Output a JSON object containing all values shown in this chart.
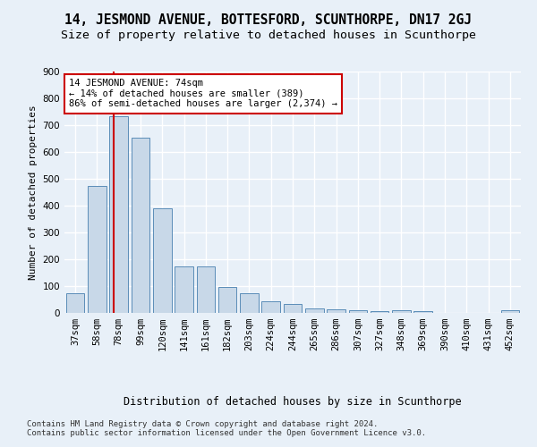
{
  "title": "14, JESMOND AVENUE, BOTTESFORD, SCUNTHORPE, DN17 2GJ",
  "subtitle": "Size of property relative to detached houses in Scunthorpe",
  "xlabel": "Distribution of detached houses by size in Scunthorpe",
  "ylabel": "Number of detached properties",
  "categories": [
    "37sqm",
    "58sqm",
    "78sqm",
    "99sqm",
    "120sqm",
    "141sqm",
    "161sqm",
    "182sqm",
    "203sqm",
    "224sqm",
    "244sqm",
    "265sqm",
    "286sqm",
    "307sqm",
    "327sqm",
    "348sqm",
    "369sqm",
    "390sqm",
    "410sqm",
    "431sqm",
    "452sqm"
  ],
  "values": [
    75,
    475,
    735,
    655,
    390,
    172,
    172,
    98,
    75,
    44,
    33,
    16,
    12,
    10,
    8,
    9,
    8,
    0,
    0,
    0,
    10
  ],
  "bar_color": "#c8d8e8",
  "bar_edge_color": "#5b8db8",
  "vline_color": "#cc0000",
  "vline_x": 1.78,
  "annotation_text": "14 JESMOND AVENUE: 74sqm\n← 14% of detached houses are smaller (389)\n86% of semi-detached houses are larger (2,374) →",
  "annotation_box_color": "#ffffff",
  "annotation_box_edge": "#cc0000",
  "bg_color": "#e8f0f8",
  "plot_bg_color": "#e8f0f8",
  "grid_color": "#ffffff",
  "ylim": [
    0,
    900
  ],
  "yticks": [
    0,
    100,
    200,
    300,
    400,
    500,
    600,
    700,
    800,
    900
  ],
  "footer": "Contains HM Land Registry data © Crown copyright and database right 2024.\nContains public sector information licensed under the Open Government Licence v3.0.",
  "title_fontsize": 10.5,
  "subtitle_fontsize": 9.5,
  "xlabel_fontsize": 8.5,
  "ylabel_fontsize": 8,
  "tick_fontsize": 7.5,
  "annot_fontsize": 7.5,
  "footer_fontsize": 6.5
}
